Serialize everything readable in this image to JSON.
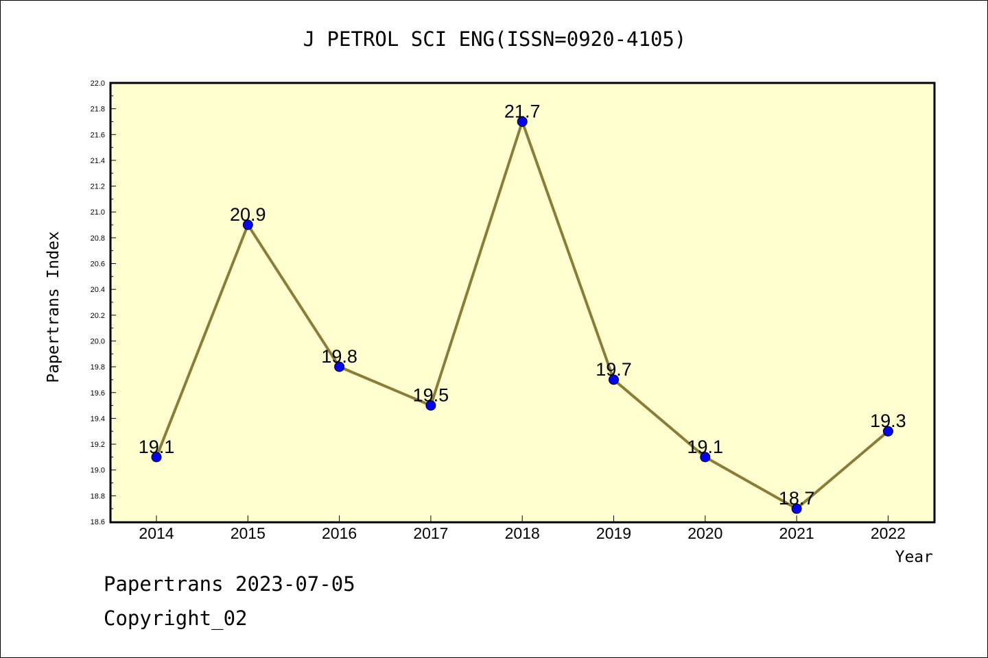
{
  "chart_data": {
    "type": "line",
    "title": "J PETROL SCI ENG(ISSN=0920-4105)",
    "xlabel": "Year",
    "ylabel": "Papertrans Index",
    "categories": [
      "2014",
      "2015",
      "2016",
      "2017",
      "2018",
      "2019",
      "2020",
      "2021",
      "2022"
    ],
    "series": [
      {
        "values": [
          19.1,
          20.9,
          19.8,
          19.5,
          21.7,
          19.7,
          19.1,
          18.7,
          19.3
        ],
        "labels": [
          "19.1",
          "20.9",
          "19.8",
          "19.5",
          "21.7",
          "19.7",
          "19.1",
          "18.7",
          "19.3"
        ]
      }
    ],
    "ylim": [
      18.6,
      22.0
    ],
    "yticks": [
      "18.6",
      "18.8",
      "19.0",
      "19.2",
      "19.4",
      "19.6",
      "19.8",
      "20.0",
      "20.2",
      "20.4",
      "20.6",
      "20.8",
      "21.0",
      "21.2",
      "21.4",
      "21.6",
      "21.8",
      "22.0"
    ],
    "grid": false,
    "colors": {
      "plot_background": "#ffffd0",
      "line": "#8b7d35",
      "marker": "#0000ff"
    }
  },
  "footer": {
    "line1": "Papertrans 2023-07-05",
    "line2": "Copyright_02"
  }
}
